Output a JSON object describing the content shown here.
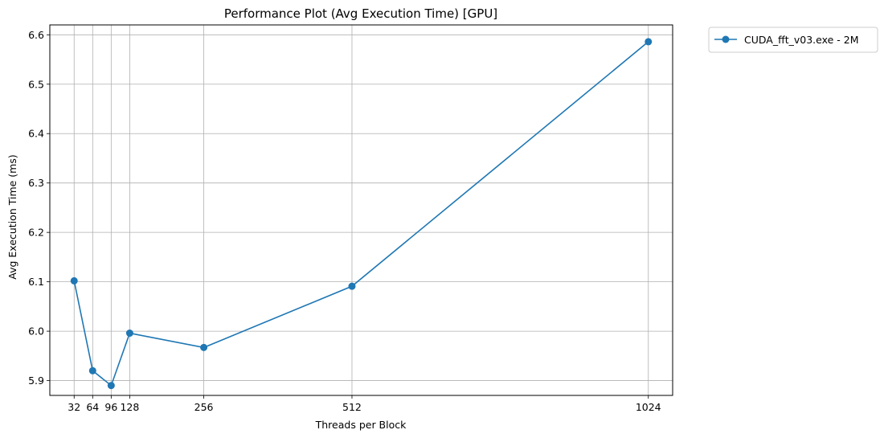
{
  "chart_data": {
    "type": "line",
    "title": "Performance Plot (Avg Execution Time) [GPU]",
    "xlabel": "Threads per Block",
    "ylabel": "Avg Execution Time (ms)",
    "xlim": [
      -10,
      1066
    ],
    "ylim": [
      5.87,
      6.62
    ],
    "x_ticks": [
      32,
      64,
      96,
      128,
      256,
      512,
      1024
    ],
    "y_ticks": [
      5.9,
      6.0,
      6.1,
      6.2,
      6.3,
      6.4,
      6.5,
      6.6
    ],
    "grid": true,
    "legend_position": "outside-top-right",
    "series": [
      {
        "name": "CUDA_fft_v03.exe - 2M",
        "color": "#1f77b4",
        "marker": "circle",
        "x": [
          32,
          64,
          96,
          128,
          256,
          512,
          1024
        ],
        "y": [
          6.102,
          5.92,
          5.89,
          5.996,
          5.967,
          6.091,
          6.586
        ]
      }
    ]
  }
}
